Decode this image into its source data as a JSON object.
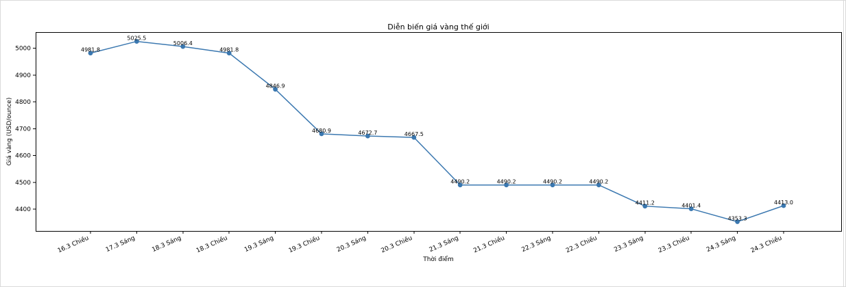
{
  "chart_data": {
    "type": "line",
    "title": "Diễn biến giá vàng thế giới",
    "xlabel": "Thời điểm",
    "ylabel": "Giá vàng (USD/ounce)",
    "categories": [
      "16.3 Chiều",
      "17.3 Sáng",
      "18.3 Sáng",
      "18.3 Chiều",
      "19.3 Sáng",
      "19.3 Chiều",
      "20.3 Sáng",
      "20.3 Chiều",
      "21.3 Sáng",
      "21.3 Chiều",
      "22.3 Sáng",
      "22.3 Chiều",
      "23.3 Sáng",
      "23.3 Chiều",
      "24.3 Sáng",
      "24.3 Chiều"
    ],
    "values": [
      4981.8,
      5025.5,
      5006.4,
      4981.8,
      4846.9,
      4680.9,
      4672.7,
      4667.5,
      4490.2,
      4490.2,
      4490.2,
      4490.2,
      4411.2,
      4401.4,
      4353.3,
      4413.0
    ],
    "data_labels": [
      "4981.8",
      "5025.5",
      "5006.4",
      "4981.8",
      "4846.9",
      "4680.9",
      "4672.7",
      "4667.5",
      "4490.2",
      "4490.2",
      "4490.2",
      "4490.2",
      "4411.2",
      "4401.4",
      "4353.3",
      "4413.0"
    ],
    "yticks": [
      4400,
      4500,
      4600,
      4700,
      4800,
      4900,
      5000
    ],
    "ytick_labels": [
      "4400",
      "4500",
      "4600",
      "4700",
      "4800",
      "4900",
      "5000"
    ],
    "ylim": [
      4318.7,
      5060.1
    ],
    "grid": false,
    "color": "#3b78b0"
  }
}
